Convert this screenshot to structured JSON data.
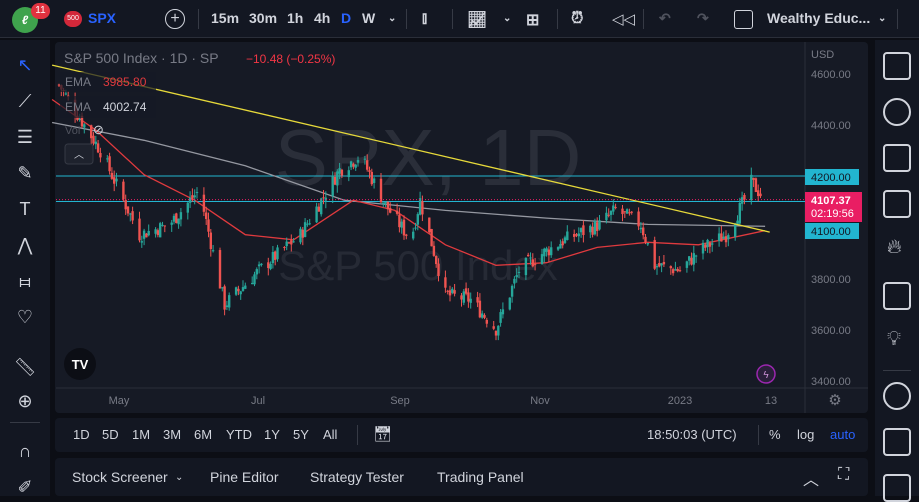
{
  "topbar": {
    "logo_badge": "11",
    "symbol_badge": "500",
    "symbol": "SPX",
    "intervals": [
      "15m",
      "30m",
      "1h",
      "4h",
      "D",
      "W"
    ],
    "active_interval": "D",
    "layout_name": "Wealthy Educ..."
  },
  "legend": {
    "title": "S&P 500 Index · 1D · SP",
    "change": "−10.48 (−0.25%)",
    "ema1_label": "EMA",
    "ema1_value": "3985.80",
    "ema2_label": "EMA",
    "ema2_value": "4002.74",
    "vol_label": "Vol"
  },
  "watermark": {
    "symbol": "SPX, 1D",
    "name": "S&P 500 Index"
  },
  "price_axis": {
    "currency": "USD",
    "ticks": [
      "4600.00",
      "4400.00",
      "4200.00",
      "3800.00",
      "3600.00",
      "3400.00"
    ],
    "last_price": "4107.37",
    "countdown": "02:19:56",
    "line_4200": "4200.00",
    "line_4100": "4100.00"
  },
  "time_axis": {
    "labels": [
      "May",
      "Jul",
      "Sep",
      "Nov",
      "2023",
      "13"
    ]
  },
  "rangebar": {
    "ranges": [
      "1D",
      "5D",
      "1M",
      "3M",
      "6M",
      "YTD",
      "1Y",
      "5Y",
      "All"
    ],
    "clock": "18:50:03 (UTC)",
    "percent": "%",
    "log": "log",
    "auto": "auto"
  },
  "bottom_panel": {
    "tabs": [
      "Stock Screener",
      "Pine Editor",
      "Strategy Tester",
      "Trading Panel"
    ]
  },
  "colors": {
    "up": "#26a69a",
    "down": "#ef5350",
    "ema_fast": "#e03a3e",
    "ema_slow": "#9598a1",
    "trendline": "#e6d93a",
    "level": "#22b5d0",
    "last_price": "#e91e63",
    "accent": "#2962ff"
  },
  "chart_data": {
    "type": "candlestick",
    "y_range": [
      3400,
      4650
    ],
    "close_path": [
      [
        "2022-04-06",
        4557
      ],
      [
        "2022-04-24",
        4300
      ],
      [
        "2022-05-11",
        3970
      ],
      [
        "2022-05-24",
        4010
      ],
      [
        "2022-06-06",
        4145
      ],
      [
        "2022-06-17",
        3695
      ],
      [
        "2022-07-02",
        3830
      ],
      [
        "2022-07-20",
        3970
      ],
      [
        "2022-08-06",
        4225
      ],
      [
        "2022-08-15",
        4280
      ],
      [
        "2022-08-26",
        4085
      ],
      [
        "2022-09-06",
        3950
      ],
      [
        "2022-09-10",
        4105
      ],
      [
        "2022-09-21",
        3735
      ],
      [
        "2022-10-02",
        3715
      ],
      [
        "2022-10-13",
        3600
      ],
      [
        "2022-10-23",
        3830
      ],
      [
        "2022-11-01",
        3890
      ],
      [
        "2022-11-12",
        3950
      ],
      [
        "2022-11-27",
        4010
      ],
      [
        "2022-12-04",
        4067
      ],
      [
        "2022-12-15",
        4010
      ],
      [
        "2022-12-21",
        3850
      ],
      [
        "2023-01-01",
        3830
      ],
      [
        "2023-01-10",
        3910
      ],
      [
        "2023-01-21",
        3970
      ],
      [
        "2023-01-29",
        4105
      ],
      [
        "2023-02-01",
        4175
      ],
      [
        "2023-02-07",
        4107.37
      ]
    ],
    "ema_fast": [
      [
        "2022-04-03",
        4500
      ],
      [
        "2022-04-22",
        4380
      ],
      [
        "2022-05-13",
        4205
      ],
      [
        "2022-06-04",
        4105
      ],
      [
        "2022-06-26",
        3970
      ],
      [
        "2022-07-17",
        3950
      ],
      [
        "2022-08-12",
        4105
      ],
      [
        "2022-08-30",
        4065
      ],
      [
        "2022-09-21",
        3930
      ],
      [
        "2022-10-13",
        3850
      ],
      [
        "2022-11-04",
        3860
      ],
      [
        "2022-11-26",
        3920
      ],
      [
        "2022-12-18",
        3940
      ],
      [
        "2023-01-09",
        3930
      ],
      [
        "2023-02-07",
        3985.8
      ]
    ],
    "ema_slow": [
      [
        "2022-04-03",
        4410
      ],
      [
        "2022-05-13",
        4340
      ],
      [
        "2022-06-26",
        4240
      ],
      [
        "2022-08-08",
        4105
      ],
      [
        "2022-09-21",
        4065
      ],
      [
        "2022-11-04",
        4035
      ],
      [
        "2022-12-18",
        4010
      ],
      [
        "2023-02-07",
        4002.74
      ]
    ],
    "trendline": [
      [
        "2022-04-03",
        4635
      ],
      [
        "2023-02-09",
        3980
      ]
    ],
    "horizontal_levels": [
      4200,
      4100
    ]
  }
}
